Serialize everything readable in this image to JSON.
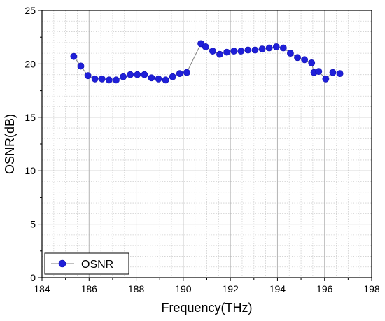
{
  "chart_data": {
    "type": "line",
    "title": "",
    "xlabel": "Frequency(THz)",
    "ylabel": "OSNR(dB)",
    "xlim": [
      184,
      198
    ],
    "ylim": [
      0,
      25
    ],
    "x_ticks": [
      184,
      186,
      188,
      190,
      192,
      194,
      196,
      198
    ],
    "y_ticks": [
      0,
      5,
      10,
      15,
      20,
      25
    ],
    "grid": true,
    "minor_grid": true,
    "legend_position": "bottom-left",
    "series": [
      {
        "name": "OSNR",
        "color": "#1f1fd8",
        "line_color": "#808080",
        "marker": "circle",
        "x": [
          185.35,
          185.65,
          185.95,
          186.25,
          186.55,
          186.85,
          187.15,
          187.45,
          187.75,
          188.05,
          188.35,
          188.65,
          188.95,
          189.25,
          189.55,
          189.85,
          190.15,
          190.75,
          190.95,
          191.25,
          191.55,
          191.85,
          192.15,
          192.45,
          192.75,
          193.05,
          193.35,
          193.65,
          193.95,
          194.25,
          194.55,
          194.85,
          195.15,
          195.45,
          195.55,
          195.75,
          196.05,
          196.35,
          196.65
        ],
        "y": [
          20.7,
          19.8,
          18.9,
          18.6,
          18.6,
          18.5,
          18.5,
          18.8,
          19.0,
          19.0,
          19.0,
          18.7,
          18.6,
          18.5,
          18.8,
          19.1,
          19.2,
          21.9,
          21.6,
          21.2,
          20.9,
          21.1,
          21.2,
          21.2,
          21.3,
          21.3,
          21.4,
          21.5,
          21.6,
          21.5,
          21.0,
          20.6,
          20.4,
          20.1,
          19.2,
          19.3,
          18.6,
          19.2,
          19.1
        ]
      }
    ]
  }
}
